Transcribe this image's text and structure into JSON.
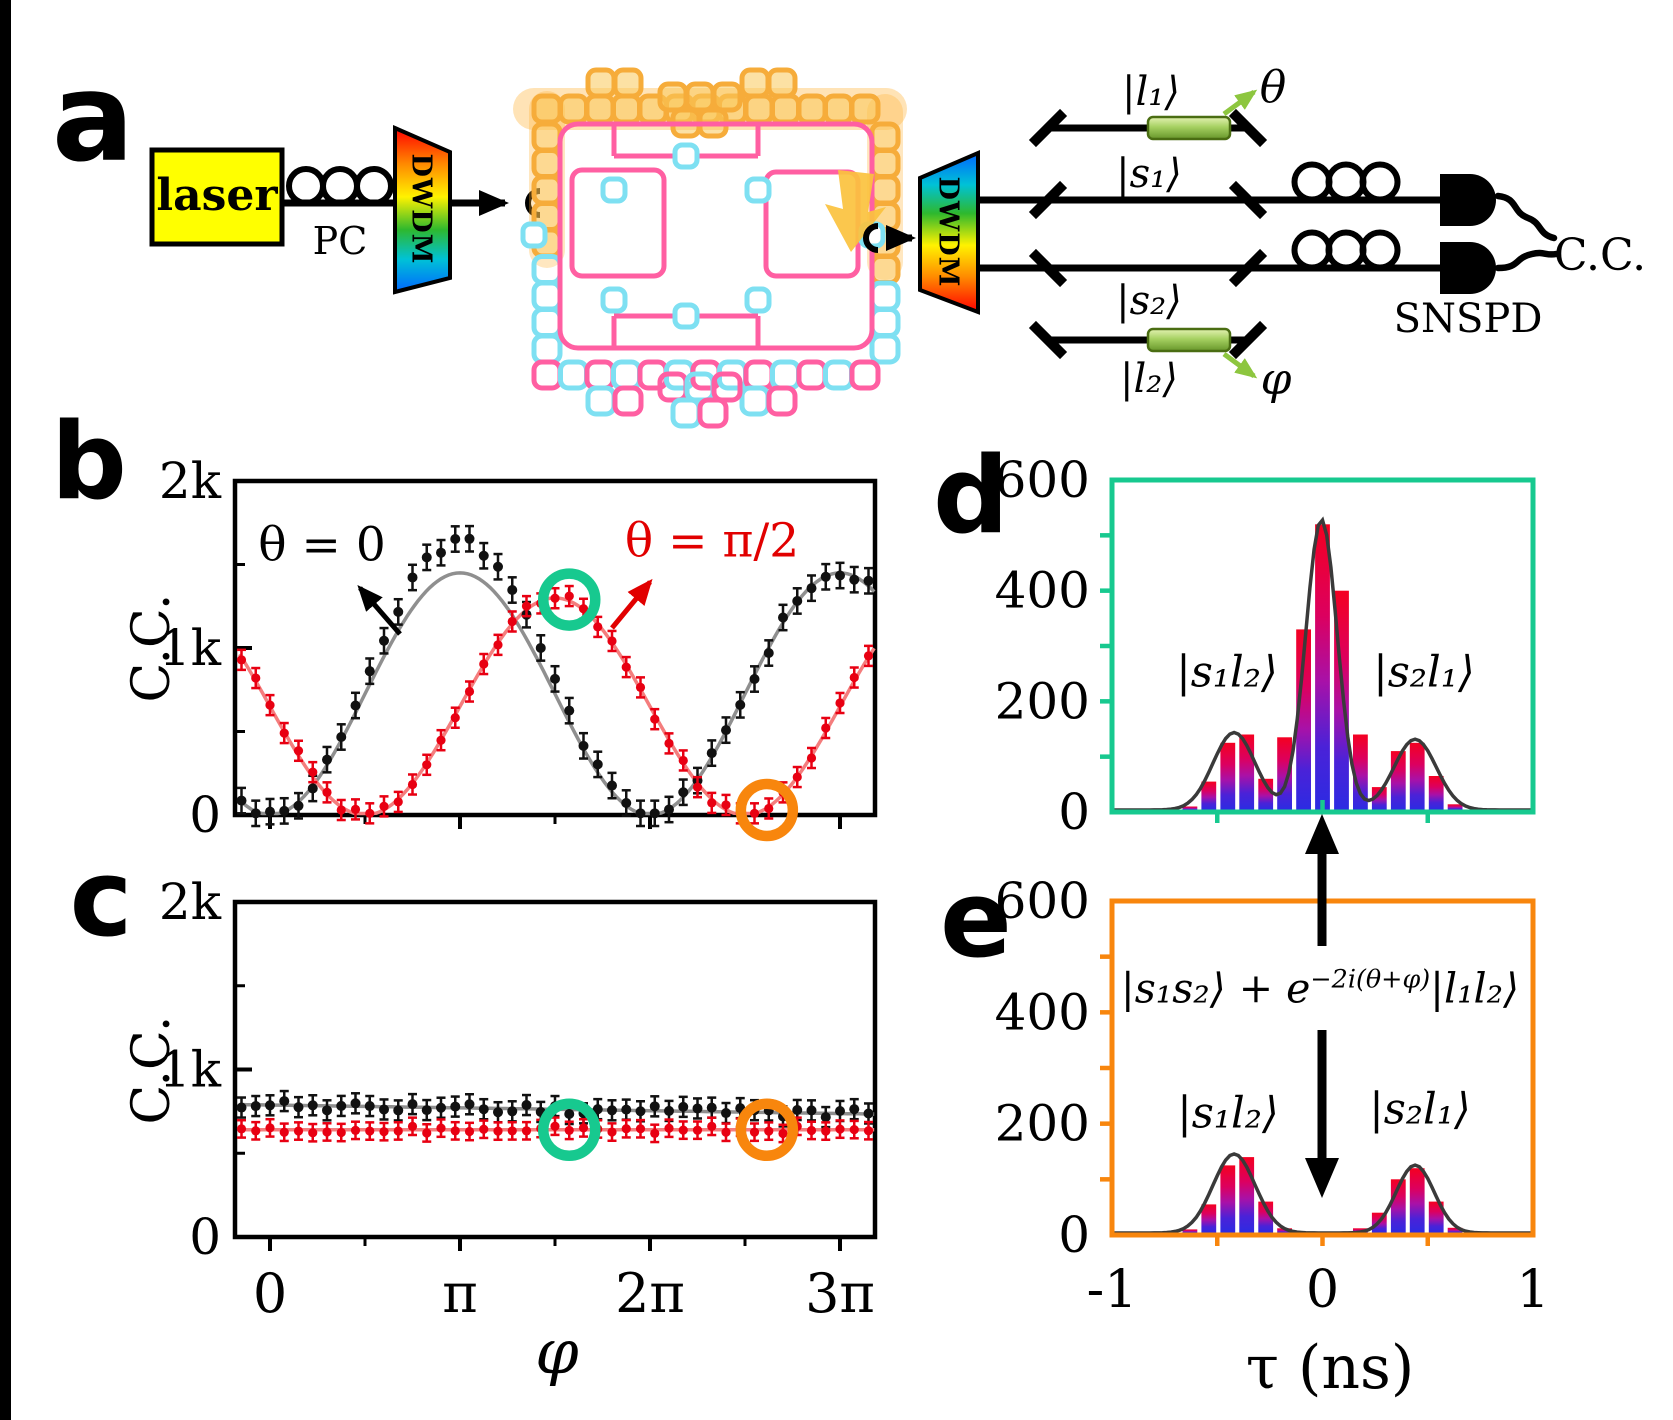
{
  "figure": {
    "panel_a": {
      "label": "a",
      "laser_label": "laser",
      "pc_label": "PC",
      "dwdm1_label": "DWDM",
      "dwdm2_label": "DWDM",
      "ket_l1": "|l₁⟩",
      "ket_s1": "|s₁⟩",
      "ket_s2": "|s₂⟩",
      "ket_l2": "|l₂⟩",
      "theta_label": "θ",
      "phi_label": "φ",
      "snspd_label": "SNSPD",
      "cc_label": "C.C."
    },
    "panel_b": {
      "label": "b",
      "ylabel": "C.C.",
      "annotation_black": "θ = 0",
      "annotation_red": "θ = π/2"
    },
    "panel_c": {
      "label": "c",
      "ylabel": "C.C.",
      "xlabel": "φ"
    },
    "panel_d": {
      "label": "d",
      "ket_left": "|s₁l₂⟩",
      "ket_right": "|s₂l₁⟩"
    },
    "panel_e": {
      "label": "e",
      "formula_pre": "|s₁s₂⟩ + e",
      "formula_sup": "−2i(θ+φ)",
      "formula_post": "|l₁l₂⟩",
      "ket_left": "|s₁l₂⟩",
      "ket_right": "|s₂l₁⟩",
      "xlabel": "τ (ns)"
    }
  },
  "colors": {
    "teal": "#17C98F",
    "orange": "#F8860D",
    "black": "#000000",
    "red_data": "#E80012",
    "red_fit": "#F47D7D",
    "gray_fit": "#8F8F8F",
    "envelope": "#3A3A3A",
    "laser_yellow": "#FFFF00",
    "chip_pink": "#FF5FA2",
    "chip_cyan": "#7EE0F2",
    "chip_orange": "#F6AC3A",
    "chip_glow": "#FFAE2E",
    "yellow_arrow": "#FBC23E",
    "shifter_green": "#A6D162",
    "arrow_green": "#8DC63F",
    "dwdm_stops": [
      "#FF0000",
      "#FF8A00",
      "#FFF200",
      "#2EB82E",
      "#00C2D6",
      "#0066FF"
    ]
  },
  "chart_data": [
    {
      "id": "b",
      "type": "scatter",
      "ylabel": "C.C.",
      "ylim": [
        0,
        2000
      ],
      "x_range_pi": [
        -0.16,
        3.18
      ],
      "yticks": [
        {
          "v": 0,
          "label": "0"
        },
        {
          "v": 500
        },
        {
          "v": 1000,
          "label": "1k"
        },
        {
          "v": 1500
        },
        {
          "v": 2000,
          "label": "2k"
        }
      ],
      "xticks": [
        {
          "pi": 0,
          "label": "0"
        },
        {
          "pi": 0.5
        },
        {
          "pi": 1,
          "label": "π"
        },
        {
          "pi": 1.5
        },
        {
          "pi": 2,
          "label": "2π"
        },
        {
          "pi": 2.5
        },
        {
          "pi": 3,
          "label": "3π"
        }
      ],
      "show_xlabels": false,
      "n_points": 45,
      "x_start_pi": -0.15,
      "x_step_pi": 0.075,
      "series": [
        {
          "name": "θ = 0",
          "color": "#111111",
          "fit_color": "#8F8F8F",
          "offset": 725,
          "amp": -725,
          "trig": "cos",
          "jitter": 35,
          "err": 38,
          "bump": {
            "center_pi": 1.0,
            "sigma_pi": 0.33,
            "amp": 200
          },
          "seed": 3
        },
        {
          "name": "θ = π/2",
          "color": "#E80012",
          "fit_color": "#F47D7D",
          "offset": 650,
          "amp": -650,
          "trig": "sin",
          "jitter": 30,
          "err": 30,
          "seed": 7
        }
      ],
      "highlight_circles": [
        {
          "color": "#17C98F",
          "x_pi": 1.575,
          "y": 1290
        },
        {
          "color": "#F8860D",
          "x_pi": 2.615,
          "y": 30
        }
      ]
    },
    {
      "id": "c",
      "type": "scatter",
      "ylabel": "C.C.",
      "xlabel": "φ",
      "ylim": [
        0,
        2000
      ],
      "x_range_pi": [
        -0.16,
        3.18
      ],
      "yticks": [
        {
          "v": 0,
          "label": "0"
        },
        {
          "v": 500
        },
        {
          "v": 1000,
          "label": "1k"
        },
        {
          "v": 1500
        },
        {
          "v": 2000,
          "label": "2k"
        }
      ],
      "xticks": [
        {
          "pi": 0,
          "label": "0"
        },
        {
          "pi": 0.5
        },
        {
          "pi": 1,
          "label": "π"
        },
        {
          "pi": 1.5
        },
        {
          "pi": 2,
          "label": "2π"
        },
        {
          "pi": 2.5
        },
        {
          "pi": 3,
          "label": "3π"
        }
      ],
      "show_xlabels": true,
      "n_points": 45,
      "x_start_pi": -0.15,
      "x_step_pi": 0.075,
      "series": [
        {
          "name": "θ = 0",
          "color": "#111111",
          "fit_color": "#8F8F8F",
          "offset": 788,
          "slope_per_pi": -17,
          "jitter": 28,
          "err": 30,
          "seed": 11
        },
        {
          "name": "θ = π/2",
          "color": "#E80012",
          "fit_color": "#F47D7D",
          "offset": 640,
          "slope_per_pi": 0,
          "jitter": 22,
          "err": 26,
          "seed": 17
        }
      ],
      "highlight_circles": [
        {
          "color": "#17C98F",
          "x_pi": 1.575,
          "y": 640
        },
        {
          "color": "#F8860D",
          "x_pi": 2.615,
          "y": 640
        }
      ]
    },
    {
      "id": "d",
      "type": "histogram",
      "box_color": "#17C98F",
      "ylim": [
        0,
        600
      ],
      "xlim_ns": [
        -1,
        1
      ],
      "yticks": [
        {
          "v": 600,
          "label": "600"
        },
        {
          "v": 500
        },
        {
          "v": 400,
          "label": "400"
        },
        {
          "v": 300
        },
        {
          "v": 200,
          "label": "200"
        },
        {
          "v": 100
        },
        {
          "v": 0,
          "label": "0"
        }
      ],
      "xticks": [
        {
          "v": -1,
          "label": "-1"
        },
        {
          "v": -0.5
        },
        {
          "v": 0,
          "label": "0"
        },
        {
          "v": 0.5
        },
        {
          "v": 1,
          "label": "1"
        }
      ],
      "show_xlabels": false,
      "bin_centers_ns": [
        -0.99,
        -0.9,
        -0.81,
        -0.72,
        -0.63,
        -0.54,
        -0.45,
        -0.36,
        -0.27,
        -0.18,
        -0.09,
        0,
        0.09,
        0.18,
        0.27,
        0.36,
        0.45,
        0.54,
        0.63,
        0.72,
        0.81,
        0.9,
        0.99
      ],
      "counts": [
        0,
        0,
        0,
        2,
        10,
        55,
        125,
        140,
        60,
        135,
        330,
        520,
        400,
        140,
        45,
        110,
        125,
        65,
        14,
        2,
        0,
        0,
        0
      ],
      "envelope_gaussians": [
        {
          "mu": -0.42,
          "sigma": 0.1,
          "amp": 140
        },
        {
          "mu": -0.005,
          "sigma": 0.075,
          "amp": 525
        },
        {
          "mu": 0.44,
          "sigma": 0.1,
          "amp": 128
        }
      ],
      "peak_labels": [
        "|s₁l₂⟩",
        "|s₂l₁⟩"
      ]
    },
    {
      "id": "e",
      "type": "histogram",
      "box_color": "#F8860D",
      "ylim": [
        0,
        600
      ],
      "xlim_ns": [
        -1,
        1
      ],
      "yticks": [
        {
          "v": 600,
          "label": "600"
        },
        {
          "v": 500
        },
        {
          "v": 400,
          "label": "400"
        },
        {
          "v": 300
        },
        {
          "v": 200,
          "label": "200"
        },
        {
          "v": 100
        },
        {
          "v": 0,
          "label": "0"
        }
      ],
      "xticks": [
        {
          "v": -1,
          "label": "-1"
        },
        {
          "v": -0.5
        },
        {
          "v": 0,
          "label": "0"
        },
        {
          "v": 0.5
        },
        {
          "v": 1,
          "label": "1"
        }
      ],
      "show_xlabels": true,
      "bin_centers_ns": [
        -0.99,
        -0.9,
        -0.81,
        -0.72,
        -0.63,
        -0.54,
        -0.45,
        -0.36,
        -0.27,
        -0.18,
        -0.09,
        0,
        0.09,
        0.18,
        0.27,
        0.36,
        0.45,
        0.54,
        0.63,
        0.72,
        0.81,
        0.9,
        0.99
      ],
      "counts": [
        0,
        0,
        0,
        1,
        10,
        55,
        125,
        140,
        60,
        12,
        2,
        1,
        2,
        12,
        40,
        100,
        120,
        60,
        13,
        1,
        0,
        0,
        0
      ],
      "envelope_gaussians": [
        {
          "mu": -0.42,
          "sigma": 0.1,
          "amp": 142
        },
        {
          "mu": 0.44,
          "sigma": 0.09,
          "amp": 122
        }
      ],
      "peak_labels": [
        "|s₁l₂⟩",
        "|s₂l₁⟩"
      ],
      "state_formula": "|s₁s₂⟩ + e^−2i(θ+φ) |l₁l₂⟩"
    }
  ]
}
